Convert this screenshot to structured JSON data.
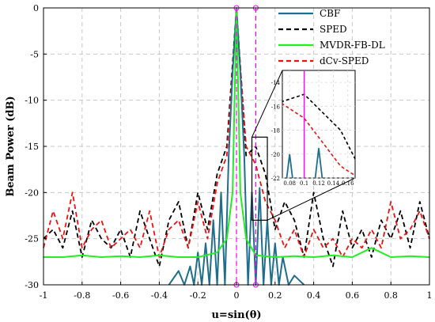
{
  "chart_data": {
    "type": "line",
    "title": "",
    "xlabel": "u=sin(θ)",
    "ylabel": "Beam Power (dB)",
    "xlim": [
      -1,
      1
    ],
    "ylim": [
      -30,
      0
    ],
    "xticks": [
      -1,
      -0.8,
      -0.6,
      -0.4,
      -0.2,
      0,
      0.2,
      0.4,
      0.6,
      0.8,
      1
    ],
    "xtick_labels": [
      "-1",
      "-0.8",
      "-0.6",
      "-0.4",
      "-0.2",
      "0",
      "0.2",
      "0.4",
      "0.6",
      "0.8",
      "1"
    ],
    "yticks": [
      0,
      -5,
      -10,
      -15,
      -20,
      -25,
      -30
    ],
    "ytick_labels": [
      "0",
      "-5",
      "-10",
      "-15",
      "-20",
      "-25",
      "-30"
    ],
    "grid": true,
    "legend_position": "top-right",
    "series": [
      {
        "name": "CBF",
        "color": "#1f6e8c",
        "style": "solid",
        "x": [
          -0.35,
          -0.3,
          -0.27,
          -0.24,
          -0.22,
          -0.2,
          -0.18,
          -0.16,
          -0.14,
          -0.12,
          -0.1,
          -0.08,
          -0.06,
          -0.04,
          -0.02,
          0,
          0.02,
          0.04,
          0.06,
          0.08,
          0.1,
          0.12,
          0.14,
          0.16,
          0.18,
          0.2,
          0.22,
          0.24,
          0.27,
          0.3,
          0.35
        ],
        "y": [
          -30,
          -28.5,
          -30,
          -28,
          -30,
          -26.5,
          -30,
          -25.5,
          -30,
          -23,
          -30,
          -20,
          -30,
          -16,
          -7,
          0,
          -7,
          -16,
          -30,
          -20,
          -30,
          -19.5,
          -30,
          -23,
          -30,
          -25.5,
          -30,
          -27,
          -30,
          -29,
          -30
        ]
      },
      {
        "name": "SPED",
        "color": "#000000",
        "style": "dashed",
        "x": [
          -1,
          -0.95,
          -0.9,
          -0.85,
          -0.8,
          -0.75,
          -0.7,
          -0.65,
          -0.6,
          -0.55,
          -0.5,
          -0.45,
          -0.4,
          -0.35,
          -0.3,
          -0.25,
          -0.2,
          -0.15,
          -0.1,
          -0.05,
          0,
          0.05,
          0.1,
          0.15,
          0.2,
          0.25,
          0.3,
          0.35,
          0.4,
          0.45,
          0.5,
          0.55,
          0.6,
          0.65,
          0.7,
          0.75,
          0.8,
          0.85,
          0.9,
          0.95,
          1
        ],
        "y": [
          -25,
          -24,
          -26,
          -22,
          -27,
          -23,
          -25,
          -26,
          -24,
          -27,
          -22,
          -25,
          -28,
          -23,
          -21,
          -26,
          -20,
          -24,
          -18,
          -15,
          0,
          -16,
          -15,
          -18,
          -24,
          -21,
          -23,
          -27,
          -20,
          -25,
          -28,
          -22,
          -26,
          -24,
          -27,
          -23,
          -25,
          -22,
          -26,
          -21,
          -25
        ]
      },
      {
        "name": "MVDR-FB-DL",
        "color": "#22ee22",
        "style": "solid",
        "x": [
          -1,
          -0.9,
          -0.8,
          -0.7,
          -0.6,
          -0.5,
          -0.4,
          -0.3,
          -0.2,
          -0.1,
          -0.05,
          -0.02,
          0,
          0.02,
          0.05,
          0.1,
          0.2,
          0.3,
          0.4,
          0.5,
          0.6,
          0.7,
          0.8,
          0.9,
          1
        ],
        "y": [
          -27,
          -27,
          -26.8,
          -27,
          -26.9,
          -27,
          -26.8,
          -27,
          -27,
          -26.5,
          -25,
          -20,
          0,
          -20,
          -25,
          -26.8,
          -27,
          -26.9,
          -27,
          -26.8,
          -27,
          -26,
          -27,
          -26.9,
          -27
        ]
      },
      {
        "name": "dCv-SPED",
        "color": "#ee1111",
        "style": "dashed",
        "x": [
          -1,
          -0.95,
          -0.9,
          -0.85,
          -0.8,
          -0.75,
          -0.7,
          -0.65,
          -0.6,
          -0.55,
          -0.5,
          -0.45,
          -0.4,
          -0.35,
          -0.3,
          -0.25,
          -0.2,
          -0.15,
          -0.1,
          -0.05,
          0,
          0.05,
          0.1,
          0.15,
          0.2,
          0.25,
          0.3,
          0.35,
          0.4,
          0.45,
          0.5,
          0.55,
          0.6,
          0.65,
          0.7,
          0.75,
          0.8,
          0.85,
          0.9,
          0.95,
          1
        ],
        "y": [
          -26,
          -22,
          -25,
          -20,
          -26,
          -24,
          -23,
          -26,
          -25,
          -24,
          -26,
          -22,
          -27,
          -24,
          -23,
          -26,
          -21,
          -25,
          -19,
          -16,
          -0.5,
          -15,
          -17,
          -21,
          -23,
          -26,
          -24,
          -27,
          -24,
          -26,
          -25,
          -27,
          -25,
          -26,
          -24,
          -26,
          -21,
          -25,
          -24,
          -22,
          -25
        ]
      }
    ],
    "markers": {
      "color": "#ff00ff",
      "lines_x": [
        0,
        0.1
      ]
    },
    "inset": {
      "xlim": [
        0.07,
        0.17
      ],
      "ylim": [
        -22,
        -13
      ],
      "xticks": [
        0.08,
        0.1,
        0.12,
        0.14,
        0.16
      ],
      "xtick_labels": [
        "0.08",
        "0.1",
        "0.12",
        "0.14",
        "0.16"
      ],
      "yticks": [
        -14,
        -16,
        -18,
        -20,
        -22
      ],
      "ytick_labels": [
        "-14",
        "-16",
        "-18",
        "-20",
        "-22"
      ],
      "zoom_x": [
        0.08,
        0.16
      ],
      "zoom_y": [
        -23,
        -14
      ]
    }
  }
}
